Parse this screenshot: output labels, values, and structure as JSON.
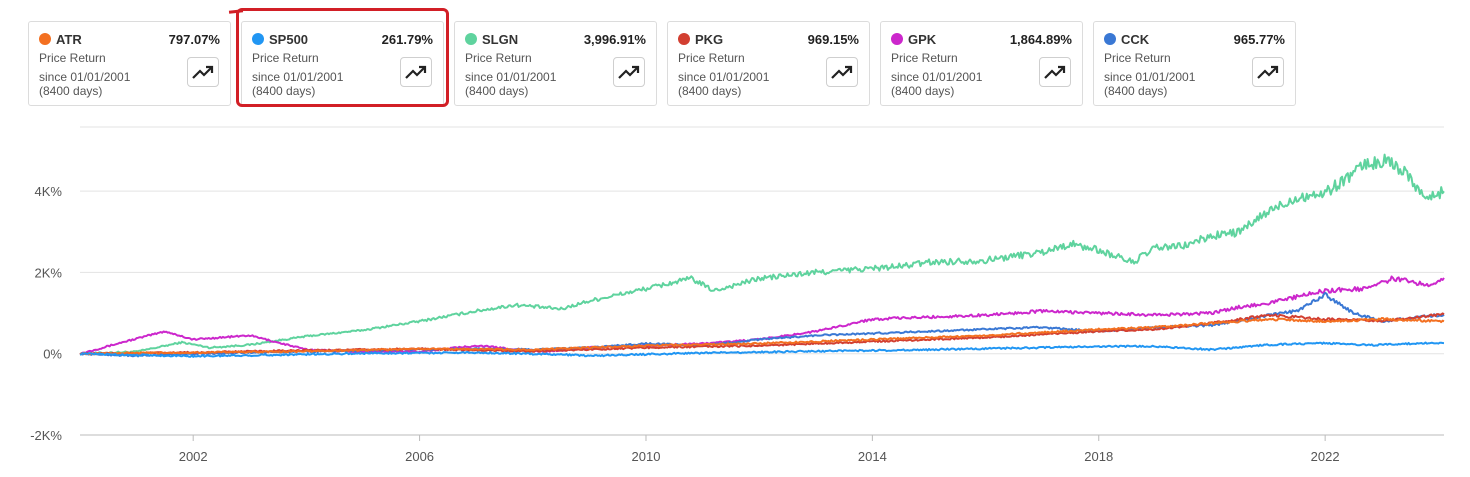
{
  "cards": [
    {
      "ticker": "ATR",
      "color": "#f37021",
      "return": "797.07%",
      "metric": "Price Return",
      "since": "since 01/01/2001",
      "days": "(8400 days)",
      "icon": "trend-up-icon"
    },
    {
      "ticker": "SP500",
      "color": "#2196f3",
      "return": "261.79%",
      "metric": "Price Return",
      "since": "since 01/01/2001",
      "days": "(8400 days)",
      "icon": "trend-up-icon"
    },
    {
      "ticker": "SLGN",
      "color": "#5fd39e",
      "return": "3,996.91%",
      "metric": "Price Return",
      "since": "since 01/01/2001",
      "days": "(8400 days)",
      "icon": "trend-up-icon"
    },
    {
      "ticker": "PKG",
      "color": "#d23f31",
      "return": "969.15%",
      "metric": "Price Return",
      "since": "since 01/01/2001",
      "days": "(8400 days)",
      "icon": "trend-up-icon"
    },
    {
      "ticker": "GPK",
      "color": "#cc27cc",
      "return": "1,864.89%",
      "metric": "Price Return",
      "since": "since 01/01/2001",
      "days": "(8400 days)",
      "icon": "trend-up-icon"
    },
    {
      "ticker": "CCK",
      "color": "#3a78d4",
      "return": "965.77%",
      "metric": "Price Return",
      "since": "since 01/01/2001",
      "days": "(8400 days)",
      "icon": "trend-up-icon"
    }
  ],
  "highlight": {
    "target": "SP500",
    "color": "#d21f26"
  },
  "chart_data": {
    "type": "line",
    "xlim": [
      2000,
      2024.1
    ],
    "ylim": [
      -2000,
      5800
    ],
    "y_ticks": [
      -2000,
      0,
      2000,
      4000
    ],
    "y_tick_labels": [
      "-2K%",
      "0%",
      "2K%",
      "4K%"
    ],
    "x_ticks": [
      2002,
      2006,
      2010,
      2014,
      2018,
      2022
    ],
    "x_tick_labels": [
      "2002",
      "2006",
      "2010",
      "2014",
      "2018",
      "2022"
    ],
    "grid": "horizontal",
    "series": [
      {
        "name": "SLGN",
        "color": "#5fd39e",
        "points": [
          [
            2000,
            0
          ],
          [
            2001,
            50
          ],
          [
            2001.8,
            280
          ],
          [
            2002.3,
            150
          ],
          [
            2003,
            220
          ],
          [
            2004,
            430
          ],
          [
            2005,
            580
          ],
          [
            2006,
            800
          ],
          [
            2007,
            1050
          ],
          [
            2007.7,
            1200
          ],
          [
            2008.5,
            1100
          ],
          [
            2009,
            1300
          ],
          [
            2010,
            1600
          ],
          [
            2010.8,
            1850
          ],
          [
            2011.2,
            1550
          ],
          [
            2012,
            1850
          ],
          [
            2013,
            2000
          ],
          [
            2014,
            2100
          ],
          [
            2014.5,
            2150
          ],
          [
            2015,
            2250
          ],
          [
            2016,
            2300
          ],
          [
            2017,
            2500
          ],
          [
            2017.5,
            2700
          ],
          [
            2018,
            2550
          ],
          [
            2018.6,
            2250
          ],
          [
            2019,
            2600
          ],
          [
            2019.5,
            2650
          ],
          [
            2020,
            2900
          ],
          [
            2020.5,
            3000
          ],
          [
            2021,
            3500
          ],
          [
            2021.5,
            3850
          ],
          [
            2022,
            3950
          ],
          [
            2022.7,
            4650
          ],
          [
            2023.1,
            4750
          ],
          [
            2023.4,
            4500
          ],
          [
            2023.8,
            3800
          ],
          [
            2024.1,
            3997
          ]
        ]
      },
      {
        "name": "GPK",
        "color": "#cc27cc",
        "points": [
          [
            2000,
            0
          ],
          [
            2000.8,
            300
          ],
          [
            2001.5,
            550
          ],
          [
            2002,
            350
          ],
          [
            2003,
            450
          ],
          [
            2004,
            100
          ],
          [
            2005,
            50
          ],
          [
            2006,
            50
          ],
          [
            2007,
            200
          ],
          [
            2007.8,
            100
          ],
          [
            2008.2,
            50
          ],
          [
            2009,
            150
          ],
          [
            2010,
            200
          ],
          [
            2011,
            250
          ],
          [
            2012,
            350
          ],
          [
            2013,
            550
          ],
          [
            2014,
            850
          ],
          [
            2015,
            900
          ],
          [
            2016,
            950
          ],
          [
            2017,
            1050
          ],
          [
            2018,
            1000
          ],
          [
            2019,
            950
          ],
          [
            2020,
            1000
          ],
          [
            2020.5,
            1150
          ],
          [
            2021,
            1250
          ],
          [
            2022,
            1550
          ],
          [
            2022.7,
            1600
          ],
          [
            2023.2,
            1850
          ],
          [
            2023.8,
            1700
          ],
          [
            2024.1,
            1865
          ]
        ]
      },
      {
        "name": "CCK",
        "color": "#3a78d4",
        "points": [
          [
            2000,
            0
          ],
          [
            2001,
            -50
          ],
          [
            2002,
            0
          ],
          [
            2003,
            30
          ],
          [
            2004,
            50
          ],
          [
            2005,
            80
          ],
          [
            2006,
            100
          ],
          [
            2007,
            120
          ],
          [
            2008,
            100
          ],
          [
            2009,
            150
          ],
          [
            2010,
            250
          ],
          [
            2011,
            200
          ],
          [
            2012,
            350
          ],
          [
            2013,
            450
          ],
          [
            2014,
            500
          ],
          [
            2015,
            550
          ],
          [
            2016,
            600
          ],
          [
            2017,
            650
          ],
          [
            2018,
            550
          ],
          [
            2019,
            650
          ],
          [
            2020,
            700
          ],
          [
            2021,
            950
          ],
          [
            2021.5,
            1050
          ],
          [
            2022,
            1450
          ],
          [
            2022.5,
            1000
          ],
          [
            2023,
            800
          ],
          [
            2024.1,
            966
          ]
        ]
      },
      {
        "name": "PKG",
        "color": "#d23f31",
        "points": [
          [
            2000,
            0
          ],
          [
            2002,
            30
          ],
          [
            2004,
            80
          ],
          [
            2006,
            120
          ],
          [
            2008,
            60
          ],
          [
            2010,
            150
          ],
          [
            2012,
            200
          ],
          [
            2014,
            300
          ],
          [
            2016,
            400
          ],
          [
            2018,
            550
          ],
          [
            2019,
            600
          ],
          [
            2020,
            750
          ],
          [
            2021,
            950
          ],
          [
            2022,
            850
          ],
          [
            2023,
            800
          ],
          [
            2024.1,
            969
          ]
        ]
      },
      {
        "name": "ATR",
        "color": "#f37021",
        "points": [
          [
            2000,
            0
          ],
          [
            2002,
            30
          ],
          [
            2004,
            60
          ],
          [
            2006,
            120
          ],
          [
            2008,
            100
          ],
          [
            2010,
            200
          ],
          [
            2012,
            250
          ],
          [
            2014,
            350
          ],
          [
            2016,
            450
          ],
          [
            2018,
            600
          ],
          [
            2019,
            650
          ],
          [
            2020,
            750
          ],
          [
            2021,
            850
          ],
          [
            2022,
            800
          ],
          [
            2023,
            850
          ],
          [
            2024.1,
            797
          ]
        ]
      },
      {
        "name": "SP500",
        "color": "#2196f3",
        "points": [
          [
            2000,
            0
          ],
          [
            2002,
            -60
          ],
          [
            2003,
            -40
          ],
          [
            2005,
            10
          ],
          [
            2007,
            30
          ],
          [
            2008.5,
            -20
          ],
          [
            2009,
            -50
          ],
          [
            2011,
            20
          ],
          [
            2013,
            60
          ],
          [
            2015,
            100
          ],
          [
            2017,
            150
          ],
          [
            2018,
            180
          ],
          [
            2019,
            180
          ],
          [
            2020,
            100
          ],
          [
            2020.5,
            160
          ],
          [
            2021,
            220
          ],
          [
            2022,
            260
          ],
          [
            2022.8,
            210
          ],
          [
            2023.5,
            250
          ],
          [
            2024.1,
            262
          ]
        ]
      }
    ]
  }
}
